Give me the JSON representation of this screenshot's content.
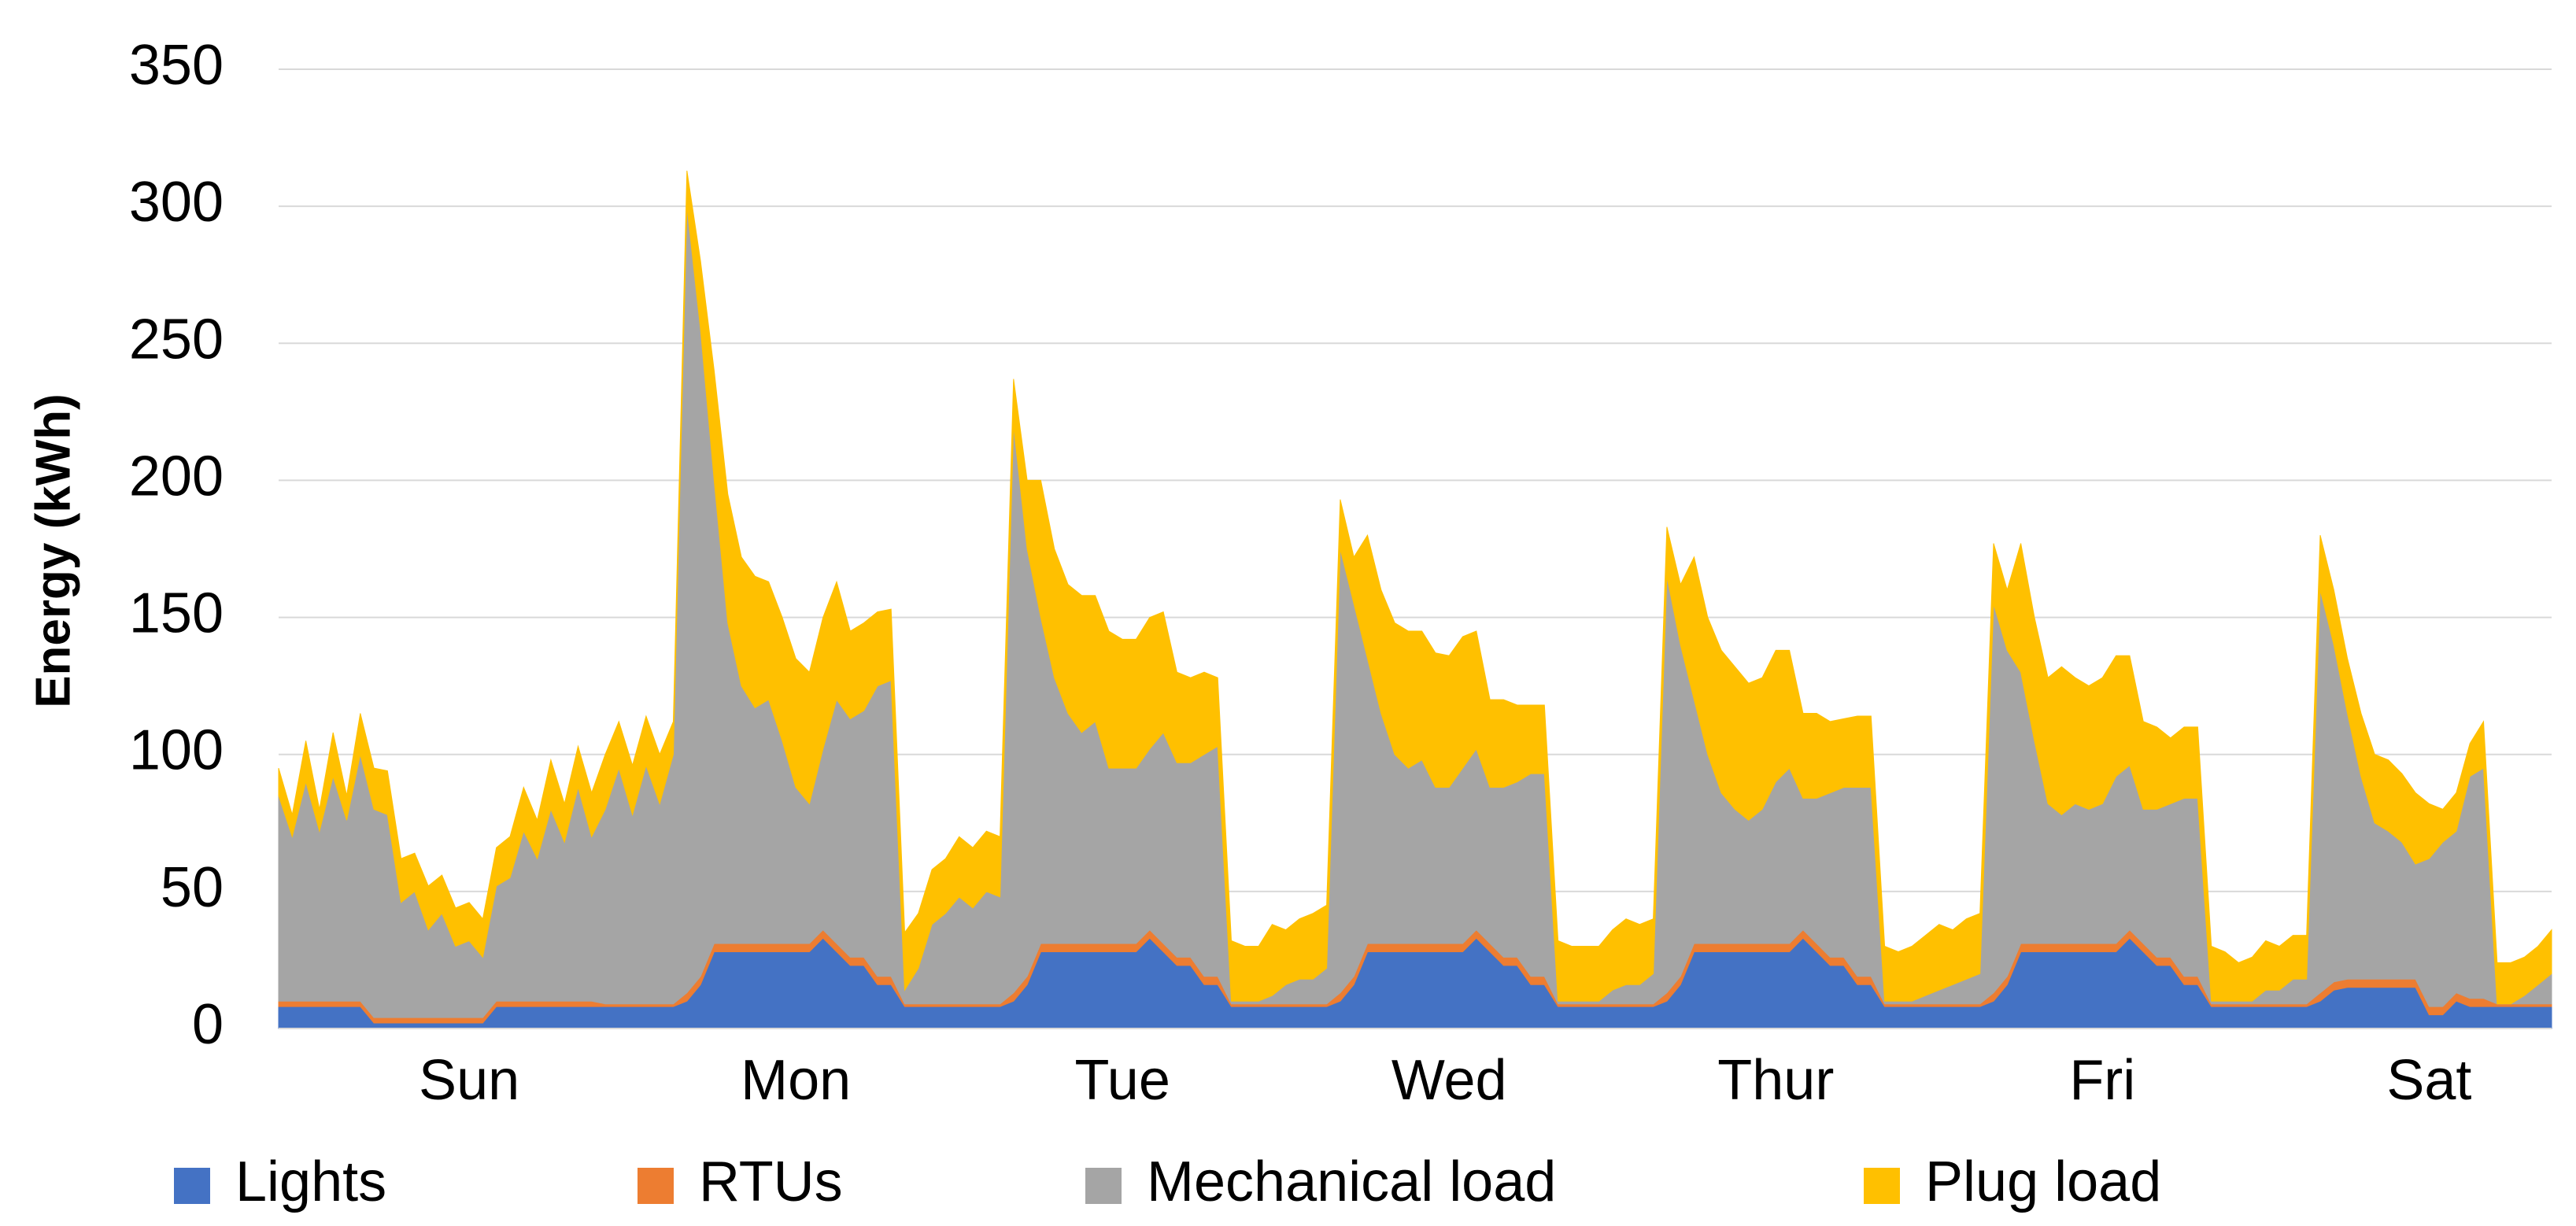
{
  "chart_data": {
    "type": "stacked-area",
    "y_label": "Energy (kWh)",
    "categories": [
      null,
      null,
      null,
      null,
      null,
      null,
      null,
      null,
      null,
      null,
      null,
      null,
      null,
      null,
      "Sun",
      null,
      null,
      null,
      null,
      null,
      null,
      null,
      null,
      null,
      null,
      null,
      null,
      null,
      null,
      null,
      null,
      null,
      null,
      null,
      null,
      null,
      null,
      null,
      "Mon",
      null,
      null,
      null,
      null,
      null,
      null,
      null,
      null,
      null,
      null,
      null,
      null,
      null,
      null,
      null,
      null,
      null,
      null,
      null,
      null,
      null,
      null,
      null,
      "Tue",
      null,
      null,
      null,
      null,
      null,
      null,
      null,
      null,
      null,
      null,
      null,
      null,
      null,
      null,
      null,
      null,
      null,
      null,
      null,
      null,
      null,
      null,
      null,
      "Wed",
      null,
      null,
      null,
      null,
      null,
      null,
      null,
      null,
      null,
      null,
      null,
      null,
      null,
      null,
      null,
      null,
      null,
      null,
      null,
      null,
      null,
      null,
      null,
      "Thur",
      null,
      null,
      null,
      null,
      null,
      null,
      null,
      null,
      null,
      null,
      null,
      null,
      null,
      null,
      null,
      null,
      null,
      null,
      null,
      null,
      null,
      null,
      null,
      "Fri",
      null,
      null,
      null,
      null,
      null,
      null,
      null,
      null,
      null,
      null,
      null,
      null,
      null,
      null,
      null,
      null,
      null,
      null,
      null,
      null,
      null,
      null,
      null,
      "Sat",
      null,
      null,
      null,
      null,
      null,
      null,
      null,
      null,
      null
    ],
    "series": [
      {
        "name": "Lights",
        "color": "#4472c4",
        "values": [
          8,
          8,
          8,
          8,
          8,
          8,
          8,
          2,
          2,
          2,
          2,
          2,
          2,
          2,
          2,
          2,
          8,
          8,
          8,
          8,
          8,
          8,
          8,
          8,
          8,
          8,
          8,
          8,
          8,
          8,
          10,
          16,
          28,
          28,
          28,
          28,
          28,
          28,
          28,
          28,
          33,
          28,
          23,
          23,
          16,
          16,
          8,
          8,
          8,
          8,
          8,
          8,
          8,
          8,
          10,
          16,
          28,
          28,
          28,
          28,
          28,
          28,
          28,
          28,
          33,
          28,
          23,
          23,
          16,
          16,
          8,
          8,
          8,
          8,
          8,
          8,
          8,
          8,
          10,
          16,
          28,
          28,
          28,
          28,
          28,
          28,
          28,
          28,
          33,
          28,
          23,
          23,
          16,
          16,
          8,
          8,
          8,
          8,
          8,
          8,
          8,
          8,
          10,
          16,
          28,
          28,
          28,
          28,
          28,
          28,
          28,
          28,
          33,
          28,
          23,
          23,
          16,
          16,
          8,
          8,
          8,
          8,
          8,
          8,
          8,
          8,
          10,
          16,
          28,
          28,
          28,
          28,
          28,
          28,
          28,
          28,
          33,
          28,
          23,
          23,
          16,
          16,
          8,
          8,
          8,
          8,
          8,
          8,
          8,
          8,
          10,
          14,
          15,
          15,
          15,
          15,
          15,
          15,
          5,
          5,
          10,
          8,
          8,
          8,
          8,
          8,
          8,
          8
        ]
      },
      {
        "name": "RTUs",
        "color": "#ed7d31",
        "values": [
          2,
          2,
          2,
          2,
          2,
          2,
          2,
          2,
          2,
          2,
          2,
          2,
          2,
          2,
          2,
          2,
          2,
          2,
          2,
          2,
          2,
          2,
          2,
          2,
          1,
          1,
          1,
          1,
          1,
          1,
          3,
          3,
          3,
          3,
          3,
          3,
          3,
          3,
          3,
          3,
          3,
          3,
          3,
          3,
          3,
          3,
          1,
          1,
          1,
          1,
          1,
          1,
          1,
          1,
          3,
          3,
          3,
          3,
          3,
          3,
          3,
          3,
          3,
          3,
          3,
          3,
          3,
          3,
          3,
          3,
          1,
          1,
          1,
          1,
          1,
          1,
          1,
          1,
          3,
          3,
          3,
          3,
          3,
          3,
          3,
          3,
          3,
          3,
          3,
          3,
          3,
          3,
          3,
          3,
          1,
          1,
          1,
          1,
          1,
          1,
          1,
          1,
          3,
          3,
          3,
          3,
          3,
          3,
          3,
          3,
          3,
          3,
          3,
          3,
          3,
          3,
          3,
          3,
          1,
          1,
          1,
          1,
          1,
          1,
          1,
          1,
          3,
          3,
          3,
          3,
          3,
          3,
          3,
          3,
          3,
          3,
          3,
          3,
          3,
          3,
          3,
          3,
          1,
          1,
          1,
          1,
          1,
          1,
          1,
          1,
          3,
          3,
          3,
          3,
          3,
          3,
          3,
          3,
          3,
          3,
          3,
          3,
          3,
          1,
          1,
          1,
          1,
          1
        ]
      },
      {
        "name": "Mechanical load",
        "color": "#a5a5a5",
        "values": [
          75,
          60,
          80,
          62,
          82,
          66,
          90,
          76,
          74,
          42,
          46,
          32,
          38,
          26,
          28,
          22,
          42,
          45,
          62,
          52,
          70,
          58,
          78,
          60,
          71,
          86,
          69,
          87,
          73,
          91,
          287,
          236,
          169,
          117,
          94,
          86,
          89,
          74,
          57,
          51,
          66,
          89,
          87,
          90,
          106,
          108,
          5,
          13,
          29,
          33,
          39,
          35,
          41,
          39,
          207,
          156,
          119,
          97,
          84,
          77,
          81,
          64,
          64,
          64,
          66,
          77,
          71,
          71,
          81,
          84,
          1,
          1,
          1,
          3,
          7,
          9,
          9,
          13,
          162,
          136,
          104,
          84,
          69,
          64,
          67,
          57,
          57,
          64,
          66,
          57,
          62,
          64,
          74,
          74,
          1,
          1,
          1,
          1,
          5,
          7,
          7,
          11,
          152,
          121,
          89,
          69,
          55,
          49,
          45,
          49,
          59,
          64,
          48,
          53,
          60,
          62,
          69,
          69,
          1,
          1,
          1,
          3,
          5,
          7,
          9,
          11,
          142,
          119,
          99,
          74,
          51,
          47,
          51,
          49,
          51,
          61,
          60,
          49,
          54,
          56,
          65,
          65,
          1,
          1,
          1,
          1,
          5,
          5,
          9,
          9,
          147,
          123,
          97,
          74,
          57,
          54,
          50,
          42,
          54,
          60,
          59,
          81,
          84,
          0,
          0,
          3,
          7,
          11
        ]
      },
      {
        "name": "Plug load",
        "color": "#ffc000",
        "values": [
          10,
          8,
          15,
          8,
          16,
          9,
          15,
          15,
          16,
          16,
          14,
          16,
          14,
          14,
          14,
          14,
          14,
          15,
          16,
          14,
          18,
          14,
          15,
          16,
          20,
          17,
          18,
          18,
          18,
          12,
          13,
          25,
          40,
          47,
          47,
          48,
          43,
          45,
          47,
          48,
          48,
          43,
          32,
          32,
          27,
          26,
          21,
          20,
          20,
          20,
          22,
          22,
          22,
          22,
          17,
          25,
          50,
          47,
          47,
          50,
          46,
          50,
          47,
          47,
          48,
          44,
          33,
          31,
          30,
          25,
          22,
          20,
          20,
          26,
          20,
          22,
          24,
          23,
          18,
          17,
          45,
          45,
          48,
          50,
          47,
          49,
          48,
          48,
          43,
          32,
          32,
          28,
          25,
          25,
          22,
          20,
          20,
          20,
          22,
          24,
          22,
          20,
          18,
          22,
          52,
          50,
          52,
          52,
          50,
          48,
          48,
          43,
          31,
          31,
          26,
          25,
          26,
          26,
          20,
          18,
          20,
          22,
          24,
          20,
          22,
          22,
          22,
          22,
          47,
          45,
          46,
          54,
          46,
          45,
          46,
          44,
          40,
          32,
          30,
          24,
          26,
          26,
          20,
          18,
          14,
          16,
          18,
          16,
          16,
          16,
          20,
          20,
          20,
          23,
          25,
          26,
          25,
          26,
          20,
          12,
          14,
          12,
          17,
          15,
          15,
          14,
          14,
          16
        ]
      }
    ],
    "ylim": [
      0,
      350
    ],
    "yticks": [
      0,
      50,
      100,
      150,
      200,
      250,
      300,
      350
    ],
    "grid": true,
    "legend": "bottom"
  }
}
